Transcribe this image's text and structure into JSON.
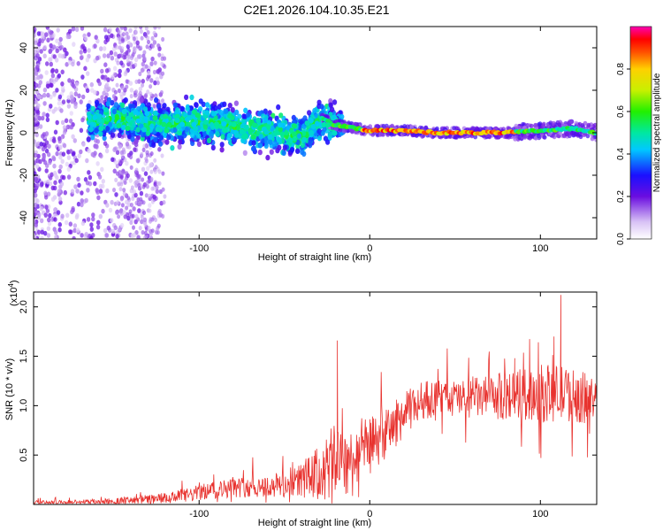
{
  "title": "C2E1.2026.104.10.35.E21",
  "chart_data": [
    {
      "type": "heatmap",
      "name": "spectrogram",
      "xlabel": "Height of straight line (km)",
      "ylabel": "Frequency (Hz)",
      "xlim": [
        -197,
        133
      ],
      "ylim": [
        -50,
        50
      ],
      "xticks": [
        -100,
        0,
        100
      ],
      "xtick_labels": [
        "-100",
        "0",
        "100"
      ],
      "yticks": [
        -40,
        -20,
        0,
        20,
        40
      ],
      "ytick_labels": [
        "-40",
        "-20",
        "0",
        "20",
        "40"
      ],
      "ridge": {
        "description": "dominant spectral ridge (frequency vs height)",
        "x": [
          -160,
          -140,
          -120,
          -100,
          -80,
          -60,
          -40,
          -28,
          -22,
          -15,
          0,
          20,
          40,
          60,
          80,
          100,
          120,
          133
        ],
        "y": [
          6,
          6,
          4,
          5,
          3,
          1,
          -2,
          7,
          4,
          3,
          1,
          1,
          0,
          0,
          0,
          1,
          2,
          0
        ]
      },
      "colorbar": {
        "label": "Normalized spectral amplitude",
        "range": [
          0,
          1
        ],
        "ticks": [
          0.0,
          0.2,
          0.4,
          0.6,
          0.8
        ],
        "tick_labels": [
          "0.0",
          "0.2",
          "0.4",
          "0.6",
          "0.8"
        ]
      }
    },
    {
      "type": "line",
      "name": "snr",
      "color": "#e8322e",
      "xlabel": "Height of straight line (km)",
      "ylabel": "SNR (10 * v/v)",
      "multiplier_prefix": "(x10",
      "multiplier_exp": "4",
      "multiplier_suffix": ")",
      "xlim": [
        -197,
        133
      ],
      "ylim": [
        0,
        2.15
      ],
      "xticks": [
        -100,
        0,
        100
      ],
      "xtick_labels": [
        "-100",
        "0",
        "100"
      ],
      "yticks": [
        0.5,
        1.0,
        1.5,
        2.0
      ],
      "ytick_labels": [
        "0.5",
        "1.0",
        "1.5",
        "2.0"
      ],
      "x": [
        -197,
        -180,
        -160,
        -140,
        -120,
        -110,
        -100,
        -90,
        -80,
        -70,
        -60,
        -50,
        -40,
        -30,
        -24,
        -18,
        -14,
        -10,
        -5,
        0,
        5,
        10,
        15,
        20,
        25,
        30,
        40,
        50,
        60,
        70,
        80,
        90,
        100,
        110,
        120,
        125,
        133
      ],
      "y": [
        0.02,
        0.02,
        0.03,
        0.04,
        0.06,
        0.08,
        0.12,
        0.15,
        0.17,
        0.18,
        0.18,
        0.2,
        0.25,
        0.3,
        0.38,
        0.5,
        0.45,
        0.42,
        0.6,
        0.62,
        0.65,
        0.72,
        0.82,
        0.9,
        0.98,
        1.05,
        1.08,
        1.07,
        1.08,
        1.08,
        1.1,
        1.12,
        1.12,
        1.13,
        1.1,
        1.08,
        1.05
      ],
      "noise": {
        "x": [
          -197,
          -150,
          -100,
          -60,
          -40,
          -25,
          -15,
          -5,
          10,
          40,
          70,
          100,
          133
        ],
        "amp": [
          0.02,
          0.03,
          0.08,
          0.12,
          0.18,
          0.35,
          0.4,
          0.28,
          0.25,
          0.18,
          0.22,
          0.3,
          0.25
        ]
      },
      "peaks": [
        {
          "x": -19,
          "y": 1.66
        },
        {
          "x": 112,
          "y": 2.12
        },
        {
          "x": 108,
          "y": 1.7
        },
        {
          "x": 85,
          "y": 1.48
        }
      ]
    }
  ]
}
